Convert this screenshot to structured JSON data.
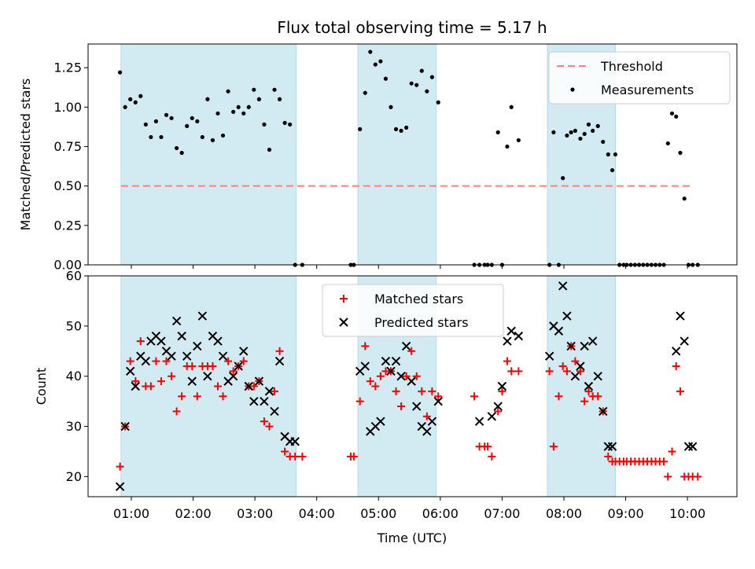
{
  "figure": {
    "title": "Flux total observing time = 5.17 h"
  },
  "chart_data": [
    {
      "type": "scatter",
      "ylabel": "Matched/Predicted stars",
      "ylim": [
        0,
        1.4
      ],
      "xlim_hours": [
        0.3,
        10.8
      ],
      "y_ticks": [
        "0.00",
        "0.25",
        "0.50",
        "0.75",
        "1.00",
        "1.25"
      ],
      "threshold": 0.5,
      "legend": [
        "Threshold",
        "Measurements"
      ],
      "legend_position": "top-right",
      "threshold_color": "#ff7f7f",
      "marker_color": "#000000",
      "shaded_intervals": [
        [
          "00:50",
          "03:40"
        ],
        [
          "04:40",
          "05:56"
        ],
        [
          "07:44",
          "08:50"
        ]
      ],
      "shade_color": "#add8e6",
      "series": [
        {
          "name": "Measurements",
          "x": [
            "00:49",
            "00:54",
            "00:59",
            "01:04",
            "01:09",
            "01:14",
            "01:19",
            "01:24",
            "01:29",
            "01:34",
            "01:39",
            "01:44",
            "01:49",
            "01:54",
            "01:59",
            "02:04",
            "02:09",
            "02:14",
            "02:19",
            "02:24",
            "02:29",
            "02:34",
            "02:39",
            "02:44",
            "02:49",
            "02:54",
            "02:59",
            "03:04",
            "03:09",
            "03:14",
            "03:19",
            "03:24",
            "03:29",
            "03:34",
            "03:39",
            "03:46",
            "04:33",
            "04:36",
            "04:42",
            "04:47",
            "04:52",
            "04:57",
            "05:02",
            "05:07",
            "05:12",
            "05:17",
            "05:22",
            "05:27",
            "05:32",
            "05:37",
            "05:42",
            "05:47",
            "05:52",
            "05:58",
            "06:33",
            "06:38",
            "06:43",
            "06:46",
            "06:50",
            "06:56",
            "07:00",
            "07:05",
            "07:09",
            "07:16",
            "07:46",
            "07:50",
            "07:55",
            "07:59",
            "08:03",
            "08:07",
            "08:11",
            "08:16",
            "08:20",
            "08:24",
            "08:28",
            "08:33",
            "08:38",
            "08:43",
            "08:47",
            "08:50",
            "08:54",
            "08:58",
            "09:01",
            "09:05",
            "09:09",
            "09:13",
            "09:17",
            "09:21",
            "09:25",
            "09:29",
            "09:33",
            "09:37",
            "09:41",
            "09:45",
            "09:49",
            "09:53",
            "09:57",
            "10:01",
            "10:05",
            "10:10"
          ],
          "y": [
            1.22,
            1.0,
            1.05,
            1.03,
            1.07,
            0.89,
            0.81,
            0.91,
            0.81,
            0.95,
            0.93,
            0.74,
            0.71,
            0.88,
            0.93,
            0.91,
            0.81,
            1.05,
            0.79,
            0.96,
            0.82,
            1.1,
            0.97,
            1.0,
            0.96,
            1.0,
            1.11,
            1.05,
            0.89,
            0.73,
            1.11,
            1.05,
            0.9,
            0.89,
            0.0,
            0.0,
            0.0,
            0.0,
            0.86,
            1.09,
            1.35,
            1.27,
            1.29,
            1.18,
            1.0,
            0.86,
            0.85,
            0.87,
            1.15,
            1.14,
            1.23,
            1.1,
            1.19,
            1.03,
            0.0,
            0.0,
            0.0,
            0.0,
            0.0,
            0.84,
            0.0,
            0.75,
            1.0,
            0.79,
            0.0,
            0.84,
            0.0,
            0.55,
            0.82,
            0.84,
            0.85,
            0.8,
            0.83,
            0.89,
            0.85,
            0.88,
            0.78,
            0.7,
            0.6,
            0.7,
            0.0,
            0.0,
            0.0,
            0.0,
            0.0,
            0.0,
            0.0,
            0.0,
            0.0,
            0.0,
            0.0,
            0.0,
            0.77,
            0.96,
            0.94,
            0.71,
            0.42,
            0.0,
            0.0,
            0.0
          ]
        }
      ]
    },
    {
      "type": "scatter",
      "xlabel": "Time (UTC)",
      "ylabel": "Count",
      "ylim": [
        16,
        60
      ],
      "xlim_hours": [
        0.3,
        10.8
      ],
      "y_ticks": [
        "20",
        "30",
        "40",
        "50",
        "60"
      ],
      "x_ticks": [
        "01:00",
        "02:00",
        "03:00",
        "04:00",
        "05:00",
        "06:00",
        "07:00",
        "08:00",
        "09:00",
        "10:00"
      ],
      "legend": [
        "Matched stars",
        "Predicted stars"
      ],
      "legend_position": "upper-center",
      "matched_color": "#ff0000",
      "predicted_color": "#000000",
      "series": [
        {
          "name": "Matched stars",
          "x": [
            "00:49",
            "00:54",
            "00:59",
            "01:04",
            "01:09",
            "01:14",
            "01:19",
            "01:24",
            "01:29",
            "01:34",
            "01:39",
            "01:44",
            "01:49",
            "01:54",
            "01:59",
            "02:04",
            "02:09",
            "02:14",
            "02:19",
            "02:24",
            "02:29",
            "02:34",
            "02:39",
            "02:44",
            "02:49",
            "02:54",
            "02:59",
            "03:04",
            "03:09",
            "03:14",
            "03:19",
            "03:24",
            "03:29",
            "03:34",
            "03:39",
            "03:46",
            "04:33",
            "04:36",
            "04:42",
            "04:47",
            "04:52",
            "04:57",
            "05:02",
            "05:07",
            "05:12",
            "05:17",
            "05:22",
            "05:27",
            "05:32",
            "05:37",
            "05:42",
            "05:47",
            "05:52",
            "05:58",
            "06:33",
            "06:38",
            "06:43",
            "06:46",
            "06:50",
            "06:56",
            "07:00",
            "07:05",
            "07:09",
            "07:16",
            "07:46",
            "07:50",
            "07:55",
            "07:59",
            "08:03",
            "08:07",
            "08:11",
            "08:16",
            "08:20",
            "08:24",
            "08:28",
            "08:33",
            "08:38",
            "08:43",
            "08:47",
            "08:50",
            "08:54",
            "08:58",
            "09:01",
            "09:05",
            "09:09",
            "09:13",
            "09:17",
            "09:21",
            "09:25",
            "09:29",
            "09:33",
            "09:37",
            "09:41",
            "09:45",
            "09:49",
            "09:53",
            "09:57",
            "10:01",
            "10:05",
            "10:10"
          ],
          "y": [
            22,
            30,
            43,
            39,
            47,
            38,
            38,
            43,
            39,
            43,
            40,
            33,
            36,
            42,
            42,
            36,
            42,
            42,
            42,
            38,
            36,
            43,
            41,
            42,
            43,
            38,
            38,
            39,
            31,
            30,
            37,
            45,
            25,
            24,
            24,
            24,
            24,
            24,
            35,
            46,
            39,
            38,
            40,
            41,
            41,
            37,
            34,
            40,
            45,
            40,
            37,
            32,
            37,
            36,
            36,
            26,
            26,
            26,
            24,
            33,
            37,
            43,
            41,
            41,
            41,
            26,
            36,
            42,
            41,
            46,
            43,
            41,
            35,
            37,
            36,
            36,
            33,
            24,
            23,
            23,
            23,
            23,
            23,
            23,
            23,
            23,
            23,
            23,
            23,
            23,
            23,
            23,
            20,
            25,
            42,
            37,
            20,
            20,
            20,
            20
          ]
        },
        {
          "name": "Predicted stars",
          "x": [
            "00:49",
            "00:54",
            "00:59",
            "01:04",
            "01:09",
            "01:14",
            "01:19",
            "01:24",
            "01:29",
            "01:34",
            "01:39",
            "01:44",
            "01:49",
            "01:54",
            "01:59",
            "02:04",
            "02:09",
            "02:14",
            "02:19",
            "02:24",
            "02:29",
            "02:34",
            "02:39",
            "02:44",
            "02:49",
            "02:54",
            "02:59",
            "03:04",
            "03:09",
            "03:14",
            "03:19",
            "03:24",
            "03:29",
            "03:34",
            "03:39",
            "04:42",
            "04:47",
            "04:52",
            "04:57",
            "05:02",
            "05:07",
            "05:12",
            "05:17",
            "05:22",
            "05:27",
            "05:32",
            "05:37",
            "05:42",
            "05:47",
            "05:52",
            "05:58",
            "06:38",
            "06:50",
            "06:56",
            "07:00",
            "07:05",
            "07:09",
            "07:16",
            "07:46",
            "07:50",
            "07:55",
            "07:59",
            "08:03",
            "08:07",
            "08:11",
            "08:16",
            "08:20",
            "08:24",
            "08:28",
            "08:33",
            "08:38",
            "08:43",
            "08:47",
            "09:49",
            "09:53",
            "09:57",
            "10:01",
            "10:05"
          ],
          "y": [
            18,
            30,
            41,
            38,
            44,
            43,
            47,
            48,
            47,
            45,
            44,
            51,
            48,
            44,
            39,
            46,
            52,
            40,
            48,
            47,
            44,
            39,
            40,
            42,
            45,
            38,
            35,
            39,
            35,
            37,
            33,
            43,
            28,
            27,
            27,
            41,
            42,
            29,
            30,
            31,
            43,
            41,
            43,
            40,
            46,
            39,
            34,
            30,
            29,
            31,
            35,
            31,
            32,
            34,
            38,
            47,
            49,
            48,
            44,
            50,
            49,
            58,
            52,
            46,
            40,
            42,
            46,
            38,
            47,
            40,
            33,
            26,
            26,
            45,
            52,
            47,
            26,
            26
          ]
        }
      ]
    }
  ]
}
